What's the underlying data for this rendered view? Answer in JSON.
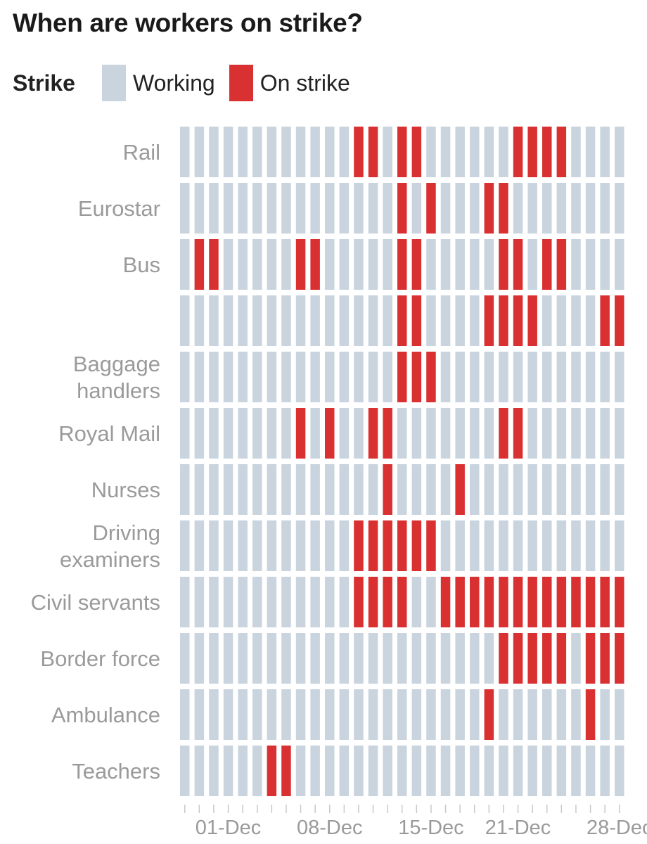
{
  "chart_data": {
    "type": "heatmap",
    "title": "When are workers on strike?",
    "legend": {
      "title": "Strike",
      "items": [
        {
          "label": "Working",
          "color": "#c9d4de"
        },
        {
          "label": "On strike",
          "color": "#d93131"
        }
      ]
    },
    "days": [
      1,
      2,
      3,
      4,
      5,
      6,
      7,
      8,
      9,
      10,
      11,
      12,
      13,
      14,
      15,
      16,
      17,
      18,
      19,
      20,
      21,
      22,
      23,
      24,
      25,
      26,
      27,
      28,
      29,
      30,
      31
    ],
    "x_ticks": [
      {
        "day": 4,
        "label": "01-Dec"
      },
      {
        "day": 11,
        "label": "08-Dec"
      },
      {
        "day": 18,
        "label": "15-Dec"
      },
      {
        "day": 24,
        "label": "21-Dec"
      },
      {
        "day": 31,
        "label": "28-Dec"
      }
    ],
    "rows": [
      {
        "label": [
          "Rail"
        ],
        "strike_days": [
          13,
          14,
          16,
          17,
          24,
          25,
          26,
          27
        ]
      },
      {
        "label": [
          "Eurostar"
        ],
        "strike_days": [
          16,
          18,
          22,
          23
        ]
      },
      {
        "label": [
          "Bus"
        ],
        "strike_days": [
          2,
          3,
          9,
          10,
          16,
          17,
          23,
          24,
          26,
          27
        ]
      },
      {
        "label": [],
        "strike_days": [
          16,
          17,
          22,
          23,
          24,
          25,
          30,
          31
        ]
      },
      {
        "label": [
          "Baggage",
          "handlers"
        ],
        "strike_days": [
          16,
          17,
          18
        ]
      },
      {
        "label": [
          "Royal Mail"
        ],
        "strike_days": [
          9,
          11,
          14,
          15,
          23,
          24
        ]
      },
      {
        "label": [
          "Nurses"
        ],
        "strike_days": [
          15,
          20
        ]
      },
      {
        "label": [
          "Driving",
          "examiners"
        ],
        "strike_days": [
          13,
          14,
          15,
          16,
          17,
          18
        ]
      },
      {
        "label": [
          "Civil servants"
        ],
        "strike_days": [
          13,
          14,
          15,
          16,
          19,
          20,
          21,
          22,
          23,
          24,
          25,
          26,
          27,
          28,
          29,
          30,
          31
        ]
      },
      {
        "label": [
          "Border force"
        ],
        "strike_days": [
          23,
          24,
          25,
          26,
          27,
          29,
          30,
          31
        ]
      },
      {
        "label": [
          "Ambulance"
        ],
        "strike_days": [
          22,
          29
        ]
      },
      {
        "label": [
          "Teachers"
        ],
        "strike_days": [
          7,
          8
        ]
      }
    ]
  }
}
